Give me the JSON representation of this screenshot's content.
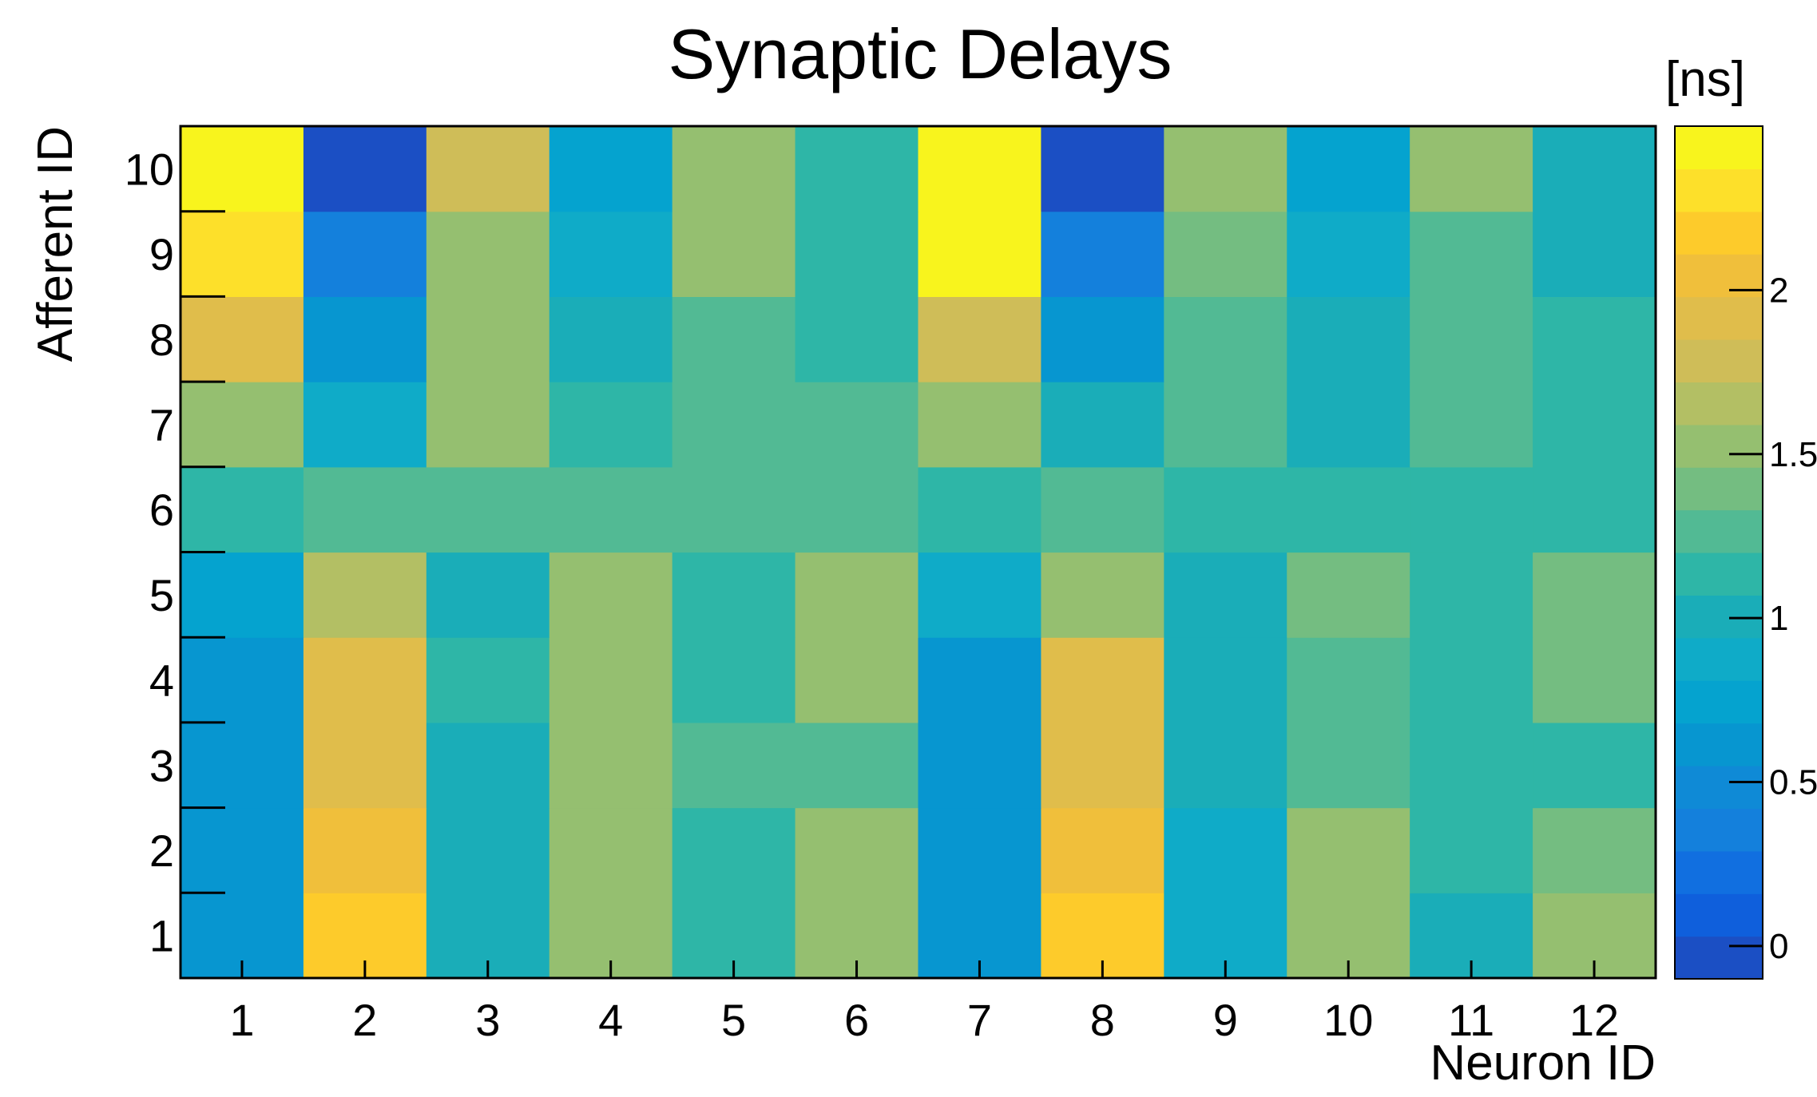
{
  "chart_data": {
    "type": "heatmap",
    "title": "Synaptic Delays",
    "xlabel": "Neuron ID",
    "ylabel": "Afferent ID",
    "x": [
      "1",
      "2",
      "3",
      "4",
      "5",
      "6",
      "7",
      "8",
      "9",
      "10",
      "11",
      "12"
    ],
    "y": [
      "1",
      "2",
      "3",
      "4",
      "5",
      "6",
      "7",
      "8",
      "9",
      "10"
    ],
    "values": [
      [
        0.56,
        2.2,
        1.04,
        1.58,
        1.15,
        1.46,
        0.56,
        2.2,
        0.86,
        1.46,
        1.04,
        1.58
      ],
      [
        0.56,
        2.06,
        1.04,
        1.58,
        1.15,
        1.46,
        0.56,
        2.06,
        0.86,
        1.46,
        1.15,
        1.35
      ],
      [
        0.66,
        1.96,
        1.04,
        1.58,
        1.25,
        1.25,
        0.66,
        1.96,
        1.04,
        1.25,
        1.15,
        1.15
      ],
      [
        0.66,
        1.96,
        1.15,
        1.46,
        1.15,
        1.46,
        0.66,
        1.96,
        1.04,
        1.25,
        1.15,
        1.35
      ],
      [
        0.76,
        1.7,
        0.96,
        1.46,
        1.15,
        1.46,
        0.86,
        1.58,
        1.04,
        1.35,
        1.15,
        1.35
      ],
      [
        1.15,
        1.25,
        1.25,
        1.25,
        1.25,
        1.25,
        1.15,
        1.25,
        1.15,
        1.15,
        1.15,
        1.15
      ],
      [
        1.58,
        0.86,
        1.46,
        1.15,
        1.25,
        1.25,
        1.46,
        1.04,
        1.25,
        1.04,
        1.25,
        1.15
      ],
      [
        1.96,
        0.66,
        1.58,
        1.04,
        1.25,
        1.15,
        1.82,
        0.66,
        1.25,
        1.04,
        1.25,
        1.15
      ],
      [
        2.32,
        0.36,
        1.58,
        0.86,
        1.46,
        1.15,
        2.44,
        0.36,
        1.35,
        0.86,
        1.25,
        1.04
      ],
      [
        2.56,
        -0.06,
        1.82,
        0.76,
        1.46,
        1.15,
        2.56,
        -0.06,
        1.58,
        0.76,
        1.46,
        1.04
      ]
    ],
    "colorbar": {
      "label": "[ns]",
      "ticks": [
        "0",
        "0.5",
        "1",
        "1.5",
        "2"
      ],
      "tick_values": [
        0,
        0.5,
        1,
        1.5,
        2
      ],
      "range": [
        -0.1,
        2.5
      ],
      "colors": [
        "#1b4fc4",
        "#0f5fdc",
        "#116fe0",
        "#1480dc",
        "#0f8ad6",
        "#0796d0",
        "#05a3cf",
        "#0fabc8",
        "#1aadb8",
        "#2eb6a7",
        "#52ba94",
        "#74bd81",
        "#95bf70",
        "#b3bf64",
        "#cfbd58",
        "#e0bd4b",
        "#f0bf3b",
        "#fdcb2b",
        "#fde02a",
        "#f8f41d"
      ]
    }
  }
}
